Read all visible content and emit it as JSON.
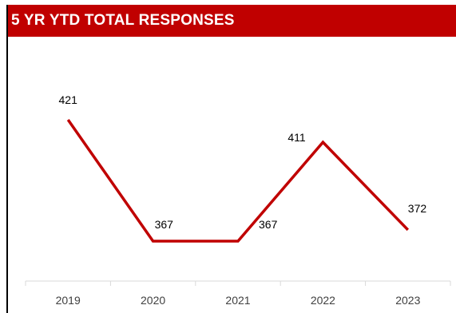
{
  "header": {
    "title": "5 YR YTD TOTAL RESPONSES",
    "background_color": "#c00000",
    "text_color": "#ffffff"
  },
  "chart_data": {
    "type": "line",
    "title": "5 YR YTD TOTAL RESPONSES",
    "xlabel": "",
    "ylabel": "",
    "categories": [
      "2019",
      "2020",
      "2021",
      "2022",
      "2023"
    ],
    "series": [
      {
        "values": [
          421,
          367,
          367,
          411,
          372
        ],
        "data_labels": [
          "421",
          "367",
          "367",
          "411",
          "372"
        ],
        "color": "#c00000"
      }
    ],
    "grid": false,
    "legend": "none",
    "y_axis_visible": false
  }
}
